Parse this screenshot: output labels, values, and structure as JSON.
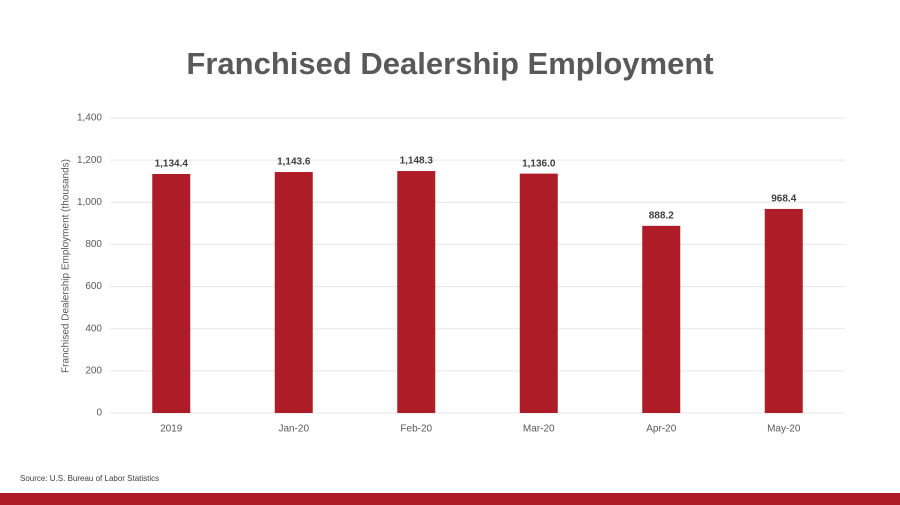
{
  "chart_data": {
    "type": "bar",
    "title": "Franchised Dealership Employment",
    "y_label": "Franchised Dealership Employment (thousands)",
    "source": "Source: U.S. Bureau of Labor Statistics",
    "categories": [
      "2019",
      "Jan-20",
      "Feb-20",
      "Mar-20",
      "Apr-20",
      "May-20"
    ],
    "values": [
      1134.4,
      1143.6,
      1148.3,
      1136.0,
      888.2,
      968.4
    ],
    "value_labels": [
      "1,134.4",
      "1,143.6",
      "1,148.3",
      "1,136.0",
      "888.2",
      "968.4"
    ],
    "color": "#ae1c28",
    "ylim": [
      0,
      1400
    ],
    "yticks": [
      0,
      200,
      400,
      600,
      800,
      {
        "value": 1000,
        "label": "1,000"
      },
      {
        "value": 1200,
        "label": "1,200"
      },
      {
        "value": 1400,
        "label": "1,400"
      }
    ],
    "grid": true
  }
}
